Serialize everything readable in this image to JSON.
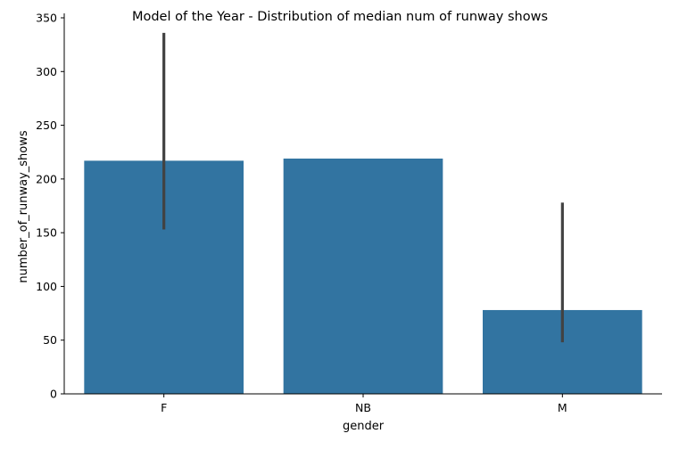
{
  "chart_data": {
    "type": "bar",
    "title": "Model of the Year - Distribution of median num of runway shows",
    "xlabel": "gender",
    "ylabel": "number_of_runway_shows",
    "categories": [
      "F",
      "NB",
      "M"
    ],
    "values": [
      217,
      219,
      78
    ],
    "error_bars": [
      {
        "low": 153,
        "high": 336
      },
      null,
      {
        "low": 48,
        "high": 178
      }
    ],
    "ylim": [
      0,
      350
    ],
    "yticks": [
      0,
      50,
      100,
      150,
      200,
      250,
      300,
      350
    ],
    "grid": false,
    "legend": "none",
    "colors": {
      "bar": "#3274a1",
      "error_bar": "#424242",
      "axis": "#000000"
    }
  }
}
